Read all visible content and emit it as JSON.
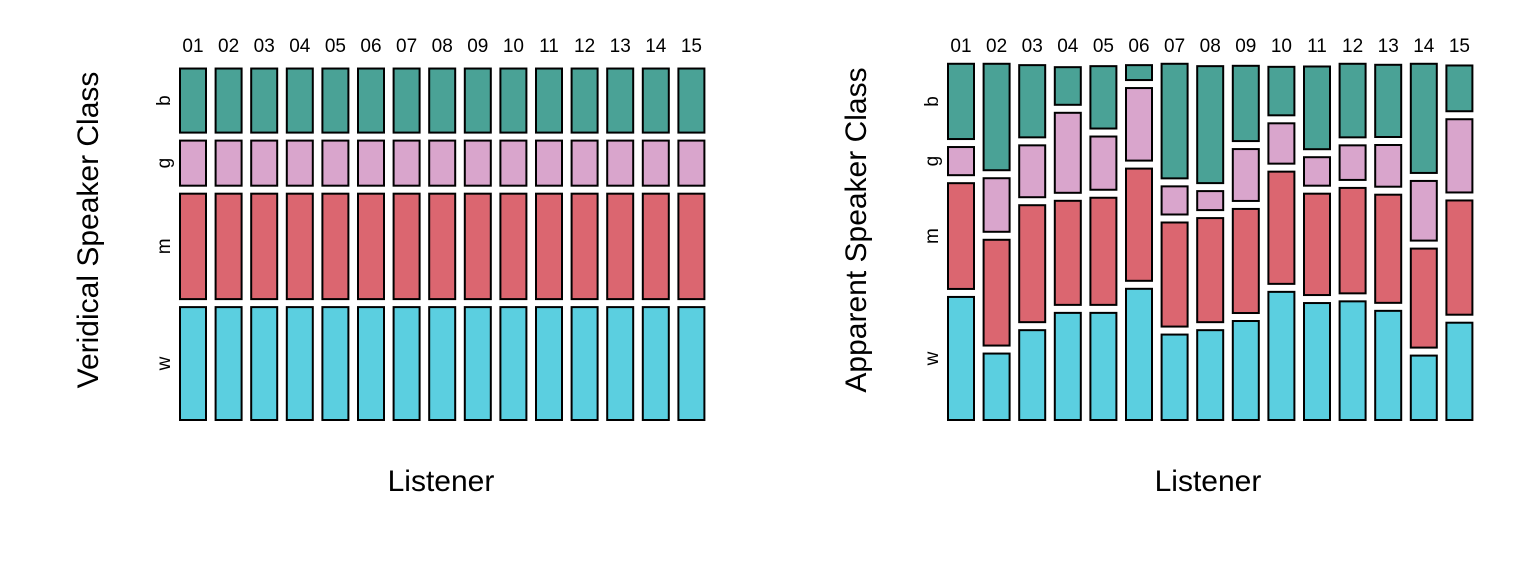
{
  "chart_data": [
    {
      "type": "mosaic",
      "xlabel": "Listener",
      "ylabel": "Veridical Speaker Class",
      "categories": [
        "01",
        "02",
        "03",
        "04",
        "05",
        "06",
        "07",
        "08",
        "09",
        "10",
        "11",
        "12",
        "13",
        "14",
        "15"
      ],
      "classes": [
        "w",
        "m",
        "g",
        "b"
      ],
      "colors": {
        "w": "#5BCFE0",
        "m": "#DB6670",
        "g": "#D9A5CC",
        "b": "#4AA296"
      },
      "proportions": [
        [
          0.333,
          0.311,
          0.133,
          0.189
        ],
        [
          0.333,
          0.311,
          0.133,
          0.189
        ],
        [
          0.333,
          0.311,
          0.133,
          0.189
        ],
        [
          0.333,
          0.311,
          0.133,
          0.189
        ],
        [
          0.333,
          0.311,
          0.133,
          0.189
        ],
        [
          0.333,
          0.311,
          0.133,
          0.189
        ],
        [
          0.333,
          0.311,
          0.133,
          0.189
        ],
        [
          0.333,
          0.311,
          0.133,
          0.189
        ],
        [
          0.333,
          0.311,
          0.133,
          0.189
        ],
        [
          0.333,
          0.311,
          0.133,
          0.189
        ],
        [
          0.333,
          0.311,
          0.133,
          0.189
        ],
        [
          0.333,
          0.311,
          0.133,
          0.189
        ],
        [
          0.333,
          0.311,
          0.133,
          0.189
        ],
        [
          0.333,
          0.311,
          0.133,
          0.189
        ],
        [
          0.333,
          0.311,
          0.133,
          0.189
        ]
      ]
    },
    {
      "type": "mosaic",
      "xlabel": "Listener",
      "ylabel": "Apparent Speaker Class",
      "categories": [
        "01",
        "02",
        "03",
        "04",
        "05",
        "06",
        "07",
        "08",
        "09",
        "10",
        "11",
        "12",
        "13",
        "14",
        "15"
      ],
      "classes": [
        "w",
        "m",
        "g",
        "b"
      ],
      "colors": {
        "w": "#5BCFE0",
        "m": "#DB6670",
        "g": "#D9A5CC",
        "b": "#4AA296"
      },
      "proportions": [
        [
          0.363,
          0.312,
          0.083,
          0.222
        ],
        [
          0.196,
          0.312,
          0.158,
          0.314
        ],
        [
          0.265,
          0.345,
          0.153,
          0.213
        ],
        [
          0.316,
          0.307,
          0.236,
          0.111
        ],
        [
          0.316,
          0.316,
          0.157,
          0.184
        ],
        [
          0.387,
          0.331,
          0.214,
          0.044
        ],
        [
          0.252,
          0.307,
          0.083,
          0.338
        ],
        [
          0.265,
          0.307,
          0.056,
          0.345
        ],
        [
          0.292,
          0.307,
          0.153,
          0.222
        ],
        [
          0.378,
          0.331,
          0.119,
          0.143
        ],
        [
          0.345,
          0.299,
          0.084,
          0.244
        ],
        [
          0.35,
          0.311,
          0.102,
          0.217
        ],
        [
          0.322,
          0.319,
          0.123,
          0.213
        ],
        [
          0.19,
          0.292,
          0.176,
          0.322
        ],
        [
          0.287,
          0.337,
          0.216,
          0.135
        ]
      ]
    }
  ]
}
